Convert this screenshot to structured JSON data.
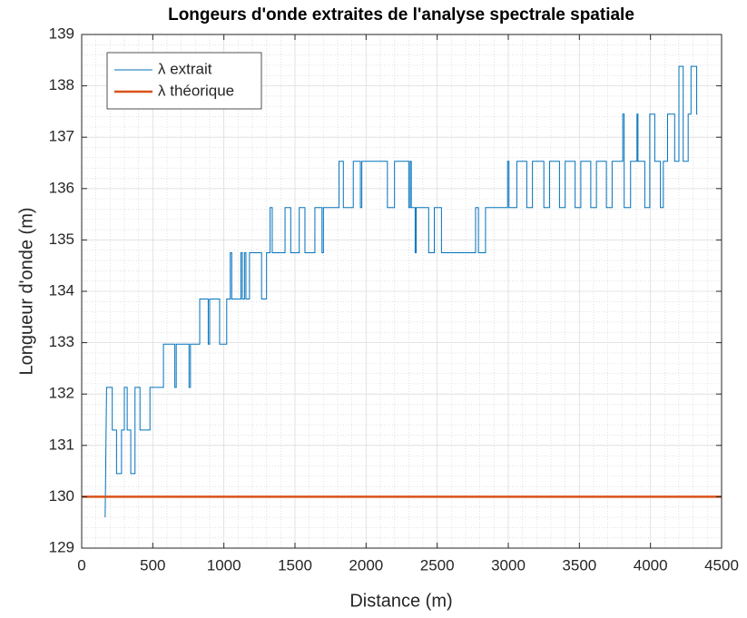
{
  "chart_data": {
    "type": "line",
    "title": "Longeurs d'onde extraites de l'analyse spectrale spatiale",
    "xlabel": "Distance (m)",
    "ylabel": "Longueur d'onde (m)",
    "xlim": [
      0,
      4500
    ],
    "xticks": [
      0,
      500,
      1000,
      1500,
      2000,
      2500,
      3000,
      3500,
      4000,
      4500
    ],
    "ylim": [
      129,
      139
    ],
    "yticks": [
      129,
      130,
      131,
      132,
      133,
      134,
      135,
      136,
      137,
      138,
      139
    ],
    "grid": true,
    "minor_grid": true,
    "legend": "northwest",
    "series": [
      {
        "name": "λ extrait",
        "color": "#0072bd",
        "line_width": 1,
        "x": [
          165,
          175,
          215,
          215,
          245,
          245,
          280,
          280,
          300,
          300,
          320,
          320,
          345,
          345,
          375,
          375,
          410,
          410,
          480,
          480,
          575,
          575,
          655,
          655,
          665,
          665,
          755,
          755,
          765,
          765,
          830,
          830,
          890,
          890,
          900,
          900,
          970,
          970,
          1020,
          1020,
          1045,
          1045,
          1055,
          1055,
          1120,
          1120,
          1130,
          1130,
          1145,
          1145,
          1155,
          1155,
          1180,
          1180,
          1265,
          1265,
          1300,
          1300,
          1325,
          1325,
          1340,
          1340,
          1430,
          1430,
          1470,
          1470,
          1530,
          1530,
          1570,
          1570,
          1640,
          1640,
          1690,
          1690,
          1700,
          1700,
          1810,
          1810,
          1840,
          1840,
          1910,
          1910,
          1960,
          1960,
          1970,
          1970,
          2150,
          2150,
          2200,
          2200,
          2300,
          2300,
          2310,
          2310,
          2318,
          2318,
          2345,
          2345,
          2352,
          2352,
          2440,
          2440,
          2480,
          2480,
          2530,
          2530,
          2770,
          2770,
          2790,
          2790,
          2840,
          2840,
          2995,
          2995,
          3005,
          3005,
          3060,
          3060,
          3130,
          3130,
          3170,
          3170,
          3250,
          3250,
          3290,
          3290,
          3360,
          3360,
          3400,
          3400,
          3470,
          3470,
          3510,
          3510,
          3580,
          3580,
          3620,
          3620,
          3690,
          3690,
          3730,
          3730,
          3805,
          3805,
          3815,
          3815,
          3860,
          3860,
          3905,
          3905,
          3912,
          3912,
          3960,
          3960,
          3995,
          3995,
          4030,
          4030,
          4070,
          4070,
          4090,
          4090,
          4120,
          4120,
          4170,
          4170,
          4200,
          4200,
          4230,
          4230,
          4265,
          4265,
          4285,
          4285,
          4325,
          4325,
          4330
        ],
        "values": [
          129.6,
          132.13,
          132.13,
          131.3,
          131.3,
          130.45,
          130.45,
          131.3,
          131.3,
          132.13,
          132.13,
          131.3,
          131.3,
          130.45,
          130.45,
          132.13,
          132.13,
          131.3,
          131.3,
          132.13,
          132.13,
          132.97,
          132.97,
          132.13,
          132.13,
          132.97,
          132.97,
          132.13,
          132.13,
          132.97,
          132.97,
          133.85,
          133.85,
          132.97,
          132.97,
          133.85,
          133.85,
          132.97,
          132.97,
          133.85,
          133.85,
          134.75,
          134.75,
          133.85,
          133.85,
          134.75,
          134.75,
          133.85,
          133.85,
          134.75,
          134.75,
          133.85,
          133.85,
          134.75,
          134.75,
          133.85,
          133.85,
          134.75,
          134.75,
          135.63,
          135.63,
          134.75,
          134.75,
          135.63,
          135.63,
          134.75,
          134.75,
          135.63,
          135.63,
          134.75,
          134.75,
          135.63,
          135.63,
          134.75,
          134.75,
          135.63,
          135.63,
          136.53,
          136.53,
          135.63,
          135.63,
          136.53,
          136.53,
          135.63,
          135.63,
          136.53,
          136.53,
          135.63,
          135.63,
          136.53,
          136.53,
          135.63,
          135.63,
          136.53,
          136.53,
          135.63,
          135.63,
          134.75,
          134.75,
          135.63,
          135.63,
          134.75,
          134.75,
          135.63,
          135.63,
          134.75,
          134.75,
          135.63,
          135.63,
          134.75,
          134.75,
          135.63,
          135.63,
          136.53,
          136.53,
          135.63,
          135.63,
          136.53,
          136.53,
          135.63,
          135.63,
          136.53,
          136.53,
          135.63,
          135.63,
          136.53,
          136.53,
          135.63,
          135.63,
          136.53,
          136.53,
          135.63,
          135.63,
          136.53,
          136.53,
          135.63,
          135.63,
          136.53,
          136.53,
          135.63,
          135.63,
          136.53,
          136.53,
          137.45,
          137.45,
          135.63,
          135.63,
          136.53,
          136.53,
          137.45,
          137.45,
          136.53,
          136.53,
          135.63,
          135.63,
          137.45,
          137.45,
          136.53,
          136.53,
          135.63,
          135.63,
          136.53,
          136.53,
          137.45,
          137.45,
          136.53,
          136.53,
          138.38,
          138.38,
          136.53,
          136.53,
          137.45,
          137.45,
          138.38,
          138.38,
          137.45,
          137.45
        ]
      },
      {
        "name": "λ théorique",
        "color": "#d95319",
        "line_width": 2.5,
        "x": [
          0,
          4500
        ],
        "values": [
          130,
          130
        ]
      }
    ]
  }
}
